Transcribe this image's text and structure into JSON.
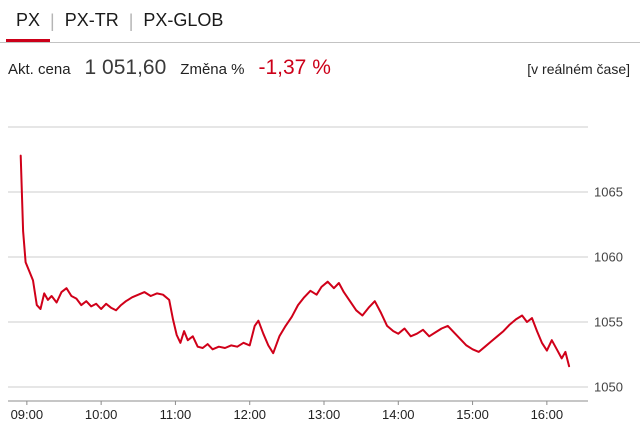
{
  "tab_divider": "|",
  "tabs": [
    {
      "label": "PX",
      "active": true
    },
    {
      "label": "PX-TR",
      "active": false
    },
    {
      "label": "PX-GLOB",
      "active": false
    }
  ],
  "quote": {
    "price_label": "Akt. cena",
    "price": "1 051,60",
    "change_label": "Změna %",
    "change": "-1,37 %",
    "realtime_note": "[v reálném čase]"
  },
  "colors": {
    "accent": "#cc0019",
    "negative": "#cc0019",
    "line": "#d00019",
    "grid": "#cccccc",
    "axis": "#8c8c8c",
    "axis_text": "#444444",
    "text": "#222222"
  },
  "chart_data": {
    "type": "line",
    "title": "",
    "xlabel": "",
    "ylabel": "",
    "legend": "none",
    "grid": "horizontal",
    "x_ticks": [
      "09:00",
      "10:00",
      "11:00",
      "12:00",
      "13:00",
      "14:00",
      "15:00",
      "16:00"
    ],
    "y_ticks": [
      1065,
      1060,
      1055,
      1050
    ],
    "ylim": [
      1049,
      1070
    ],
    "time_range": [
      "08:48",
      "16:30"
    ],
    "series": [
      {
        "name": "PX",
        "color": "#d00019",
        "points": [
          [
            "08:55",
            1067.8
          ],
          [
            "08:57",
            1062.0
          ],
          [
            "08:59",
            1059.6
          ],
          [
            "09:02",
            1058.9
          ],
          [
            "09:05",
            1058.2
          ],
          [
            "09:08",
            1056.3
          ],
          [
            "09:11",
            1056.0
          ],
          [
            "09:14",
            1057.2
          ],
          [
            "09:17",
            1056.7
          ],
          [
            "09:20",
            1057.0
          ],
          [
            "09:24",
            1056.5
          ],
          [
            "09:28",
            1057.3
          ],
          [
            "09:32",
            1057.6
          ],
          [
            "09:36",
            1057.0
          ],
          [
            "09:40",
            1056.8
          ],
          [
            "09:44",
            1056.3
          ],
          [
            "09:48",
            1056.6
          ],
          [
            "09:52",
            1056.2
          ],
          [
            "09:56",
            1056.4
          ],
          [
            "10:00",
            1056.0
          ],
          [
            "10:04",
            1056.4
          ],
          [
            "10:08",
            1056.1
          ],
          [
            "10:12",
            1055.9
          ],
          [
            "10:16",
            1056.3
          ],
          [
            "10:20",
            1056.6
          ],
          [
            "10:25",
            1056.9
          ],
          [
            "10:30",
            1057.1
          ],
          [
            "10:35",
            1057.3
          ],
          [
            "10:40",
            1057.0
          ],
          [
            "10:45",
            1057.2
          ],
          [
            "10:50",
            1057.1
          ],
          [
            "10:55",
            1056.7
          ],
          [
            "10:58",
            1055.2
          ],
          [
            "11:01",
            1054.0
          ],
          [
            "11:04",
            1053.4
          ],
          [
            "11:07",
            1054.3
          ],
          [
            "11:10",
            1053.6
          ],
          [
            "11:14",
            1053.9
          ],
          [
            "11:18",
            1053.1
          ],
          [
            "11:22",
            1053.0
          ],
          [
            "11:26",
            1053.3
          ],
          [
            "11:30",
            1052.9
          ],
          [
            "11:35",
            1053.1
          ],
          [
            "11:40",
            1053.0
          ],
          [
            "11:45",
            1053.2
          ],
          [
            "11:50",
            1053.1
          ],
          [
            "11:55",
            1053.4
          ],
          [
            "12:00",
            1053.2
          ],
          [
            "12:04",
            1054.7
          ],
          [
            "12:07",
            1055.1
          ],
          [
            "12:11",
            1054.1
          ],
          [
            "12:15",
            1053.2
          ],
          [
            "12:19",
            1052.6
          ],
          [
            "12:24",
            1053.9
          ],
          [
            "12:29",
            1054.7
          ],
          [
            "12:34",
            1055.4
          ],
          [
            "12:39",
            1056.3
          ],
          [
            "12:44",
            1056.9
          ],
          [
            "12:49",
            1057.4
          ],
          [
            "12:54",
            1057.1
          ],
          [
            "12:58",
            1057.7
          ],
          [
            "13:03",
            1058.1
          ],
          [
            "13:08",
            1057.6
          ],
          [
            "13:12",
            1058.0
          ],
          [
            "13:16",
            1057.3
          ],
          [
            "13:21",
            1056.6
          ],
          [
            "13:26",
            1055.9
          ],
          [
            "13:31",
            1055.5
          ],
          [
            "13:36",
            1056.1
          ],
          [
            "13:41",
            1056.6
          ],
          [
            "13:46",
            1055.7
          ],
          [
            "13:51",
            1054.7
          ],
          [
            "13:56",
            1054.3
          ],
          [
            "14:00",
            1054.1
          ],
          [
            "14:05",
            1054.5
          ],
          [
            "14:10",
            1053.9
          ],
          [
            "14:15",
            1054.1
          ],
          [
            "14:20",
            1054.4
          ],
          [
            "14:25",
            1053.9
          ],
          [
            "14:30",
            1054.2
          ],
          [
            "14:35",
            1054.5
          ],
          [
            "14:40",
            1054.7
          ],
          [
            "14:45",
            1054.2
          ],
          [
            "14:50",
            1053.7
          ],
          [
            "14:55",
            1053.2
          ],
          [
            "15:00",
            1052.9
          ],
          [
            "15:05",
            1052.7
          ],
          [
            "15:10",
            1053.1
          ],
          [
            "15:15",
            1053.5
          ],
          [
            "15:20",
            1053.9
          ],
          [
            "15:25",
            1054.3
          ],
          [
            "15:30",
            1054.8
          ],
          [
            "15:35",
            1055.2
          ],
          [
            "15:40",
            1055.5
          ],
          [
            "15:44",
            1055.0
          ],
          [
            "15:48",
            1055.3
          ],
          [
            "15:52",
            1054.3
          ],
          [
            "15:56",
            1053.4
          ],
          [
            "16:00",
            1052.8
          ],
          [
            "16:04",
            1053.6
          ],
          [
            "16:08",
            1052.9
          ],
          [
            "16:12",
            1052.2
          ],
          [
            "16:15",
            1052.7
          ],
          [
            "16:18",
            1051.6
          ]
        ]
      }
    ]
  }
}
